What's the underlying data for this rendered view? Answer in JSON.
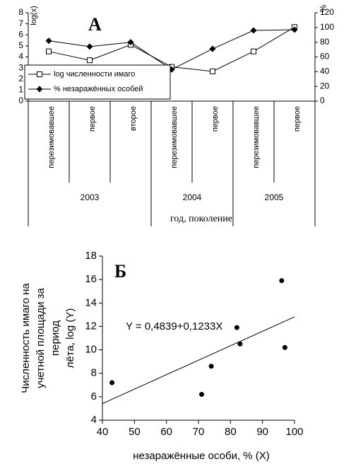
{
  "chart_data": [
    {
      "type": "line",
      "title": "А",
      "x_label": "год, поколение",
      "y_label": "log(x)",
      "y2_label": "%",
      "groups": [
        {
          "label": "2003",
          "categories": [
            "перезимовавшее",
            "первое",
            "второе"
          ]
        },
        {
          "label": "2004",
          "categories": [
            "перезимовавшее",
            "первое"
          ]
        },
        {
          "label": "2005",
          "categories": [
            "перезимовавшее",
            "первое"
          ]
        }
      ],
      "series": [
        {
          "name": "log численности имаго",
          "color": "#000000",
          "marker": "square",
          "values": [
            4.5,
            3.7,
            5.1,
            3.1,
            2.7,
            4.5,
            6.7
          ]
        },
        {
          "name": "% незаражённых особей",
          "color": "#000000",
          "marker": "diamond",
          "axis": "y2",
          "values": [
            82,
            74,
            80,
            43,
            71,
            96,
            97
          ]
        }
      ],
      "ylim": [
        0,
        8
      ],
      "yticks": [
        0,
        1,
        2,
        3,
        4,
        5,
        6,
        7,
        8
      ],
      "y2lim": [
        0,
        120
      ],
      "y2ticks": [
        0,
        20,
        40,
        60,
        80,
        100,
        120
      ],
      "legend": "bottom-left"
    },
    {
      "type": "scatter",
      "title": "Б",
      "x_label": "незаражённые особи, % (X)",
      "y_label": [
        "Численность имаго на",
        "учетной площади за",
        "период",
        "лёта, log (Y)"
      ],
      "x": [
        43,
        71,
        74,
        82,
        83,
        96,
        97
      ],
      "values": [
        7.2,
        6.2,
        8.6,
        11.9,
        10.5,
        15.9,
        10.2
      ],
      "color": "#000000",
      "trendline": {
        "label": "Y = 0,4839+0,1233X",
        "intercept": 0.4839,
        "slope": 0.1233
      },
      "xlim": [
        40,
        100
      ],
      "xticks": [
        40,
        50,
        60,
        70,
        80,
        90,
        100
      ],
      "ylim": [
        4,
        18
      ],
      "yticks": [
        4,
        6,
        8,
        10,
        12,
        14,
        16,
        18
      ]
    }
  ]
}
